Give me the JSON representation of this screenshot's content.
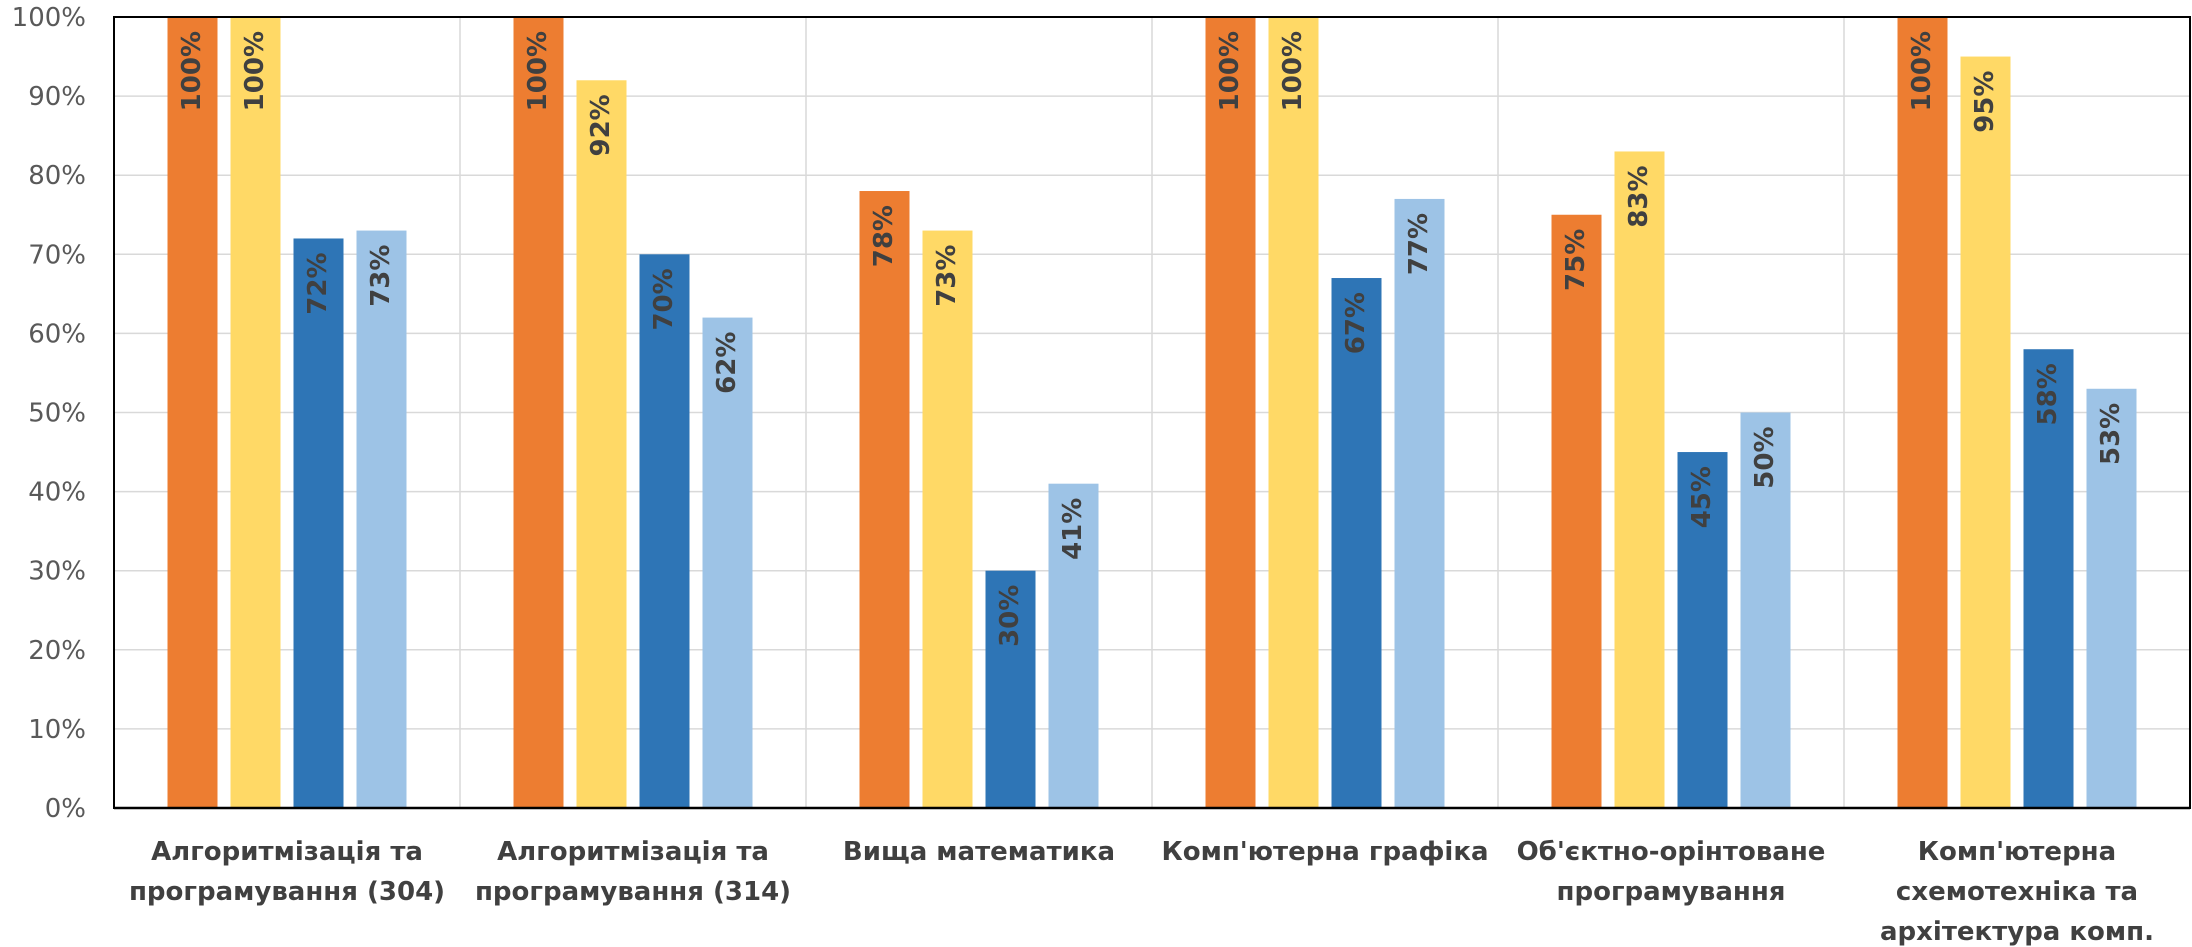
{
  "chart_data": {
    "type": "bar",
    "title": "",
    "xlabel": "",
    "ylabel": "",
    "ylim": [
      0,
      100
    ],
    "y_tick_step": 10,
    "y_tick_suffix": "%",
    "value_suffix": "%",
    "grid": true,
    "legend": "none",
    "categories": [
      [
        "Алгоритмізація та",
        "програмування (304)"
      ],
      [
        "Алгоритмізація та",
        "програмування (314)"
      ],
      [
        "Вища математика"
      ],
      [
        "Комп'ютерна графіка"
      ],
      [
        "Об'єктно-орінтоване",
        "програмування"
      ],
      [
        "Комп'ютерна",
        "схемотехніка та",
        "архітектура комп."
      ]
    ],
    "series": [
      {
        "color": "#ED7D31",
        "values": [
          100,
          100,
          78,
          100,
          75,
          100
        ]
      },
      {
        "color": "#FFD966",
        "values": [
          100,
          92,
          73,
          100,
          83,
          95
        ]
      },
      {
        "color": "#2E75B6",
        "values": [
          72,
          70,
          30,
          67,
          45,
          58
        ]
      },
      {
        "color": "#9DC3E6",
        "values": [
          73,
          62,
          41,
          77,
          50,
          53
        ]
      }
    ]
  }
}
